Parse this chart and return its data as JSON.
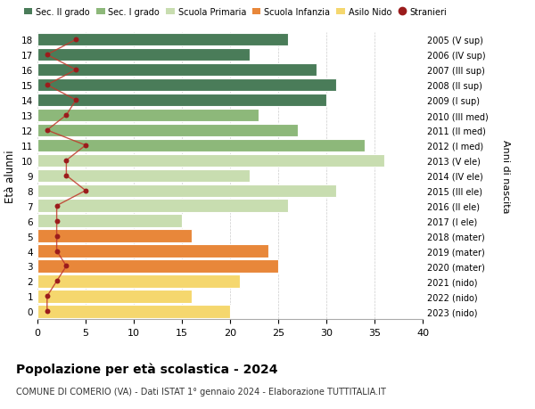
{
  "ages": [
    0,
    1,
    2,
    3,
    4,
    5,
    6,
    7,
    8,
    9,
    10,
    11,
    12,
    13,
    14,
    15,
    16,
    17,
    18
  ],
  "years_labels": [
    "2023 (nido)",
    "2022 (nido)",
    "2021 (nido)",
    "2020 (mater)",
    "2019 (mater)",
    "2018 (mater)",
    "2017 (I ele)",
    "2016 (II ele)",
    "2015 (III ele)",
    "2014 (IV ele)",
    "2013 (V ele)",
    "2012 (I med)",
    "2011 (II med)",
    "2010 (III med)",
    "2009 (I sup)",
    "2008 (II sup)",
    "2007 (III sup)",
    "2006 (IV sup)",
    "2005 (V sup)"
  ],
  "bar_values": [
    20,
    16,
    21,
    25,
    24,
    16,
    15,
    26,
    31,
    22,
    36,
    34,
    27,
    23,
    30,
    31,
    29,
    22,
    26
  ],
  "stranieri": [
    1,
    1,
    2,
    3,
    2,
    2,
    2,
    2,
    5,
    3,
    3,
    5,
    1,
    3,
    4,
    1,
    4,
    1,
    4
  ],
  "bar_colors": [
    "#f5d76e",
    "#f5d76e",
    "#f5d76e",
    "#e8873a",
    "#e8873a",
    "#e8873a",
    "#c8ddb0",
    "#c8ddb0",
    "#c8ddb0",
    "#c8ddb0",
    "#c8ddb0",
    "#8db87a",
    "#8db87a",
    "#8db87a",
    "#4a7c59",
    "#4a7c59",
    "#4a7c59",
    "#4a7c59",
    "#4a7c59"
  ],
  "legend_labels": [
    "Sec. II grado",
    "Sec. I grado",
    "Scuola Primaria",
    "Scuola Infanzia",
    "Asilo Nido",
    "Stranieri"
  ],
  "legend_colors": [
    "#4a7c59",
    "#8db87a",
    "#c8ddb0",
    "#e8873a",
    "#f5d76e",
    "#9b1c1c"
  ],
  "ylabel": "Età alunni",
  "right_label": "Anni di nascita",
  "title": "Popolazione per età scolastica - 2024",
  "subtitle": "COMUNE DI COMERIO (VA) - Dati ISTAT 1° gennaio 2024 - Elaborazione TUTTITALIA.IT",
  "xlim": [
    0,
    40
  ],
  "stranieri_color": "#9b1c1c",
  "stranieri_line_color": "#c0392b",
  "background_color": "#ffffff",
  "bar_edge_color": "#ffffff"
}
